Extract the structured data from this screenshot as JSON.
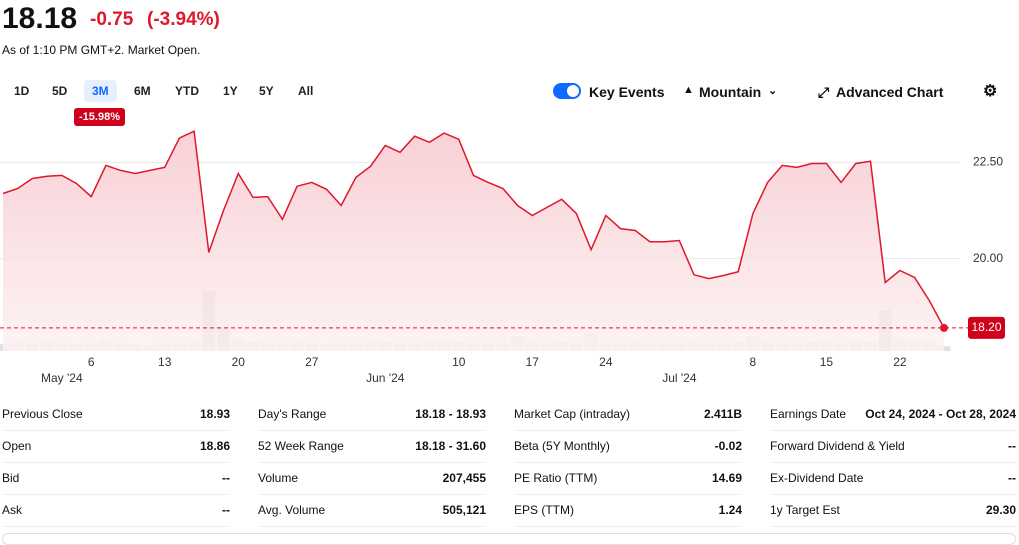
{
  "header": {
    "price": "18.18",
    "change": "-0.75",
    "change_pct": "(-3.94%)",
    "as_of": "As of 1:10 PM GMT+2. Market Open."
  },
  "ranges": [
    "1D",
    "5D",
    "3M",
    "6M",
    "YTD",
    "1Y",
    "5Y",
    "All"
  ],
  "active_range": 2,
  "range_change": "-15.98%",
  "controls": {
    "key_events": "Key Events",
    "chart_type": "Mountain",
    "advanced": "Advanced Chart"
  },
  "chart": {
    "type": "area",
    "color": "#e0162b",
    "ylim": [
      17.6,
      23.6
    ],
    "yticks": [
      {
        "value": 20,
        "label": "20.00"
      },
      {
        "value": 22.5,
        "label": "22.50"
      }
    ],
    "grid": true,
    "last_label": "18.20",
    "values": [
      21.69,
      21.82,
      22.08,
      22.14,
      22.16,
      21.95,
      21.61,
      22.42,
      22.29,
      22.21,
      22.29,
      22.37,
      23.13,
      23.31,
      20.16,
      21.25,
      22.21,
      21.59,
      21.61,
      21.02,
      21.88,
      21.98,
      21.8,
      21.38,
      22.11,
      22.4,
      22.94,
      22.76,
      23.18,
      23.02,
      23.26,
      23.1,
      22.16,
      21.98,
      21.82,
      21.38,
      21.12,
      21.33,
      21.54,
      21.17,
      20.23,
      21.12,
      20.78,
      20.73,
      20.44,
      20.44,
      20.47,
      19.58,
      19.48,
      19.56,
      19.66,
      21.17,
      21.98,
      22.42,
      22.37,
      22.47,
      22.47,
      21.98,
      22.47,
      22.53,
      19.38,
      19.69,
      19.51,
      18.91,
      18.2
    ],
    "volume": [
      12,
      14,
      13,
      15,
      12,
      11,
      13,
      18,
      12,
      11,
      10,
      12,
      13,
      14,
      100,
      40,
      20,
      15,
      13,
      12,
      14,
      12,
      11,
      13,
      12,
      14,
      15,
      13,
      12,
      14,
      16,
      15,
      12,
      13,
      12,
      25,
      14,
      13,
      15,
      12,
      30,
      13,
      12,
      14,
      12,
      13,
      12,
      14,
      13,
      12,
      15,
      25,
      14,
      12,
      13,
      15,
      14,
      12,
      16,
      15,
      68,
      20,
      14,
      18,
      8
    ],
    "vlim": [
      0,
      100
    ],
    "day_labels": [
      null,
      null,
      null,
      null,
      null,
      null,
      "6",
      null,
      null,
      null,
      null,
      "13",
      null,
      null,
      null,
      null,
      "20",
      null,
      null,
      null,
      null,
      "27",
      null,
      null,
      null,
      null,
      null,
      null,
      null,
      null,
      null,
      "10",
      null,
      null,
      null,
      null,
      "17",
      null,
      null,
      null,
      null,
      "24",
      null,
      null,
      null,
      null,
      null,
      null,
      null,
      null,
      null,
      "8",
      null,
      null,
      null,
      null,
      "15",
      null,
      null,
      null,
      null,
      "22",
      null,
      null,
      null
    ],
    "month_labels": [
      null,
      null,
      null,
      null,
      "May '24",
      null,
      null,
      null,
      null,
      null,
      null,
      null,
      null,
      null,
      null,
      null,
      null,
      null,
      null,
      null,
      null,
      null,
      null,
      null,
      null,
      null,
      "Jun '24",
      null,
      null,
      null,
      null,
      null,
      null,
      null,
      null,
      null,
      null,
      null,
      null,
      null,
      null,
      null,
      null,
      null,
      null,
      null,
      "Jul '24",
      null,
      null,
      null,
      null,
      null,
      null,
      null,
      null,
      null,
      null,
      null,
      null,
      null,
      null,
      null,
      null,
      null,
      null
    ]
  },
  "stats": [
    [
      [
        "Previous Close",
        "18.93"
      ],
      [
        "Open",
        "18.86"
      ],
      [
        "Bid",
        "--"
      ],
      [
        "Ask",
        "--"
      ]
    ],
    [
      [
        "Day's Range",
        "18.18 - 18.93"
      ],
      [
        "52 Week Range",
        "18.18 - 31.60"
      ],
      [
        "Volume",
        "207,455"
      ],
      [
        "Avg. Volume",
        "505,121"
      ]
    ],
    [
      [
        "Market Cap (intraday)",
        "2.411B"
      ],
      [
        "Beta (5Y Monthly)",
        "-0.02"
      ],
      [
        "PE Ratio (TTM)",
        "14.69"
      ],
      [
        "EPS (TTM)",
        "1.24"
      ]
    ],
    [
      [
        "Earnings Date",
        "Oct 24, 2024 - Oct 28, 2024"
      ],
      [
        "Forward Dividend & Yield",
        "--"
      ],
      [
        "Ex-Dividend Date",
        "--"
      ],
      [
        "1y Target Est",
        "29.30"
      ]
    ]
  ]
}
